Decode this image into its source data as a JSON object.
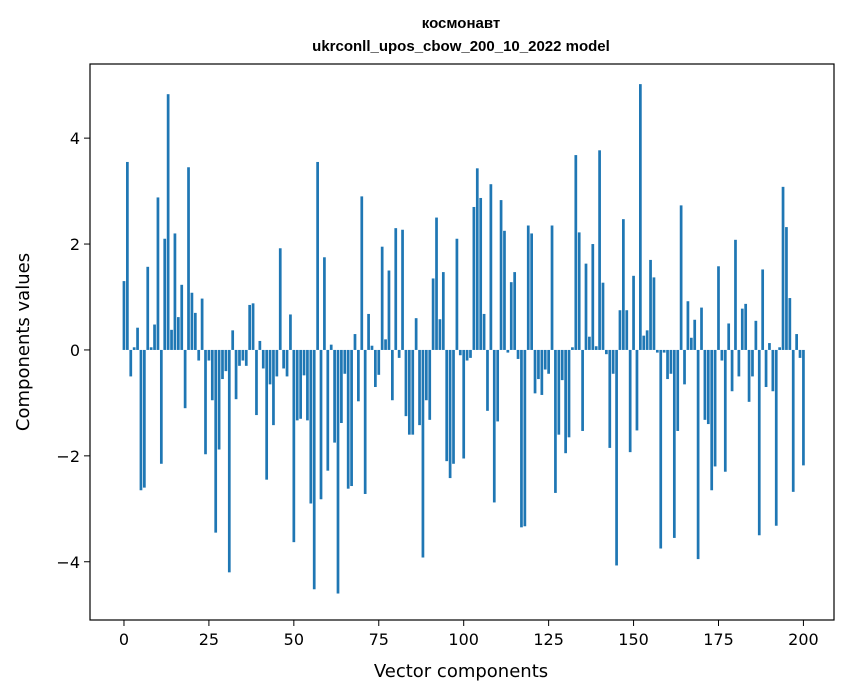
{
  "chart_data": {
    "type": "bar",
    "title_line1": "космонавт",
    "title_line2": "ukrconll_upos_cbow_200_10_2022 model",
    "xlabel": "Vector components",
    "ylabel": "Components values",
    "xlim": [
      -10,
      209
    ],
    "ylim": [
      -5.1,
      5.4
    ],
    "xticks": [
      0,
      25,
      50,
      75,
      100,
      125,
      150,
      175,
      200
    ],
    "yticks": [
      -4,
      -2,
      0,
      2,
      4
    ],
    "grid": false,
    "bar_color": "#1f77b4",
    "values": [
      1.3,
      3.55,
      -0.5,
      0.05,
      0.42,
      -2.65,
      -2.6,
      1.57,
      0.05,
      0.48,
      2.88,
      -2.15,
      2.1,
      4.83,
      0.38,
      2.2,
      0.62,
      1.23,
      -1.1,
      3.45,
      1.08,
      0.7,
      -0.2,
      0.97,
      -1.97,
      -0.2,
      -0.95,
      -3.45,
      -1.88,
      -0.55,
      -0.4,
      -4.2,
      0.37,
      -0.93,
      -0.3,
      -0.2,
      -0.3,
      0.85,
      0.88,
      -1.23,
      0.17,
      -0.35,
      -2.45,
      -0.65,
      -1.42,
      -0.5,
      1.92,
      -0.35,
      -0.5,
      0.67,
      -3.63,
      -1.33,
      -1.3,
      -0.48,
      -1.33,
      -2.9,
      -4.52,
      3.55,
      -2.82,
      1.75,
      -2.28,
      0.1,
      -1.75,
      -4.6,
      -1.38,
      -0.45,
      -2.62,
      -2.57,
      0.3,
      -0.97,
      2.9,
      -2.72,
      0.68,
      0.08,
      -0.7,
      -0.47,
      1.95,
      0.2,
      1.5,
      -0.95,
      2.3,
      -0.15,
      2.27,
      -1.25,
      -1.6,
      -1.6,
      0.6,
      -1.42,
      -3.92,
      -0.95,
      -1.32,
      1.35,
      2.5,
      0.58,
      1.47,
      -2.1,
      -2.42,
      -2.15,
      2.1,
      -0.1,
      -2.05,
      -0.2,
      -0.15,
      2.7,
      3.43,
      2.87,
      0.68,
      -1.15,
      3.13,
      -2.88,
      -1.35,
      2.83,
      2.25,
      -0.05,
      1.28,
      1.47,
      -0.17,
      -3.35,
      -3.33,
      2.35,
      2.2,
      -0.82,
      -0.55,
      -0.85,
      -0.37,
      -0.45,
      2.35,
      -2.7,
      -1.6,
      -0.57,
      -1.95,
      -1.65,
      0.05,
      3.68,
      2.22,
      -1.53,
      1.63,
      0.25,
      2.0,
      0.07,
      3.77,
      1.27,
      -0.08,
      -1.85,
      -0.45,
      -4.07,
      0.75,
      2.47,
      0.75,
      -1.93,
      1.4,
      -1.52,
      5.02,
      0.27,
      0.37,
      1.7,
      1.37,
      -0.05,
      -3.75,
      -0.05,
      -0.55,
      -0.45,
      -3.55,
      -1.53,
      2.73,
      -0.65,
      0.92,
      0.23,
      0.57,
      -3.95,
      0.8,
      -1.32,
      -1.4,
      -2.65,
      -2.2,
      1.58,
      -0.2,
      -2.3,
      0.5,
      -0.78,
      2.08,
      -0.5,
      0.78,
      0.87,
      -0.98,
      -0.5,
      0.55,
      -3.5,
      1.52,
      -0.7,
      0.13,
      -0.78,
      -3.32,
      0.05,
      3.08,
      2.32,
      0.98,
      -2.68,
      0.3,
      -0.15,
      -2.18
    ]
  }
}
